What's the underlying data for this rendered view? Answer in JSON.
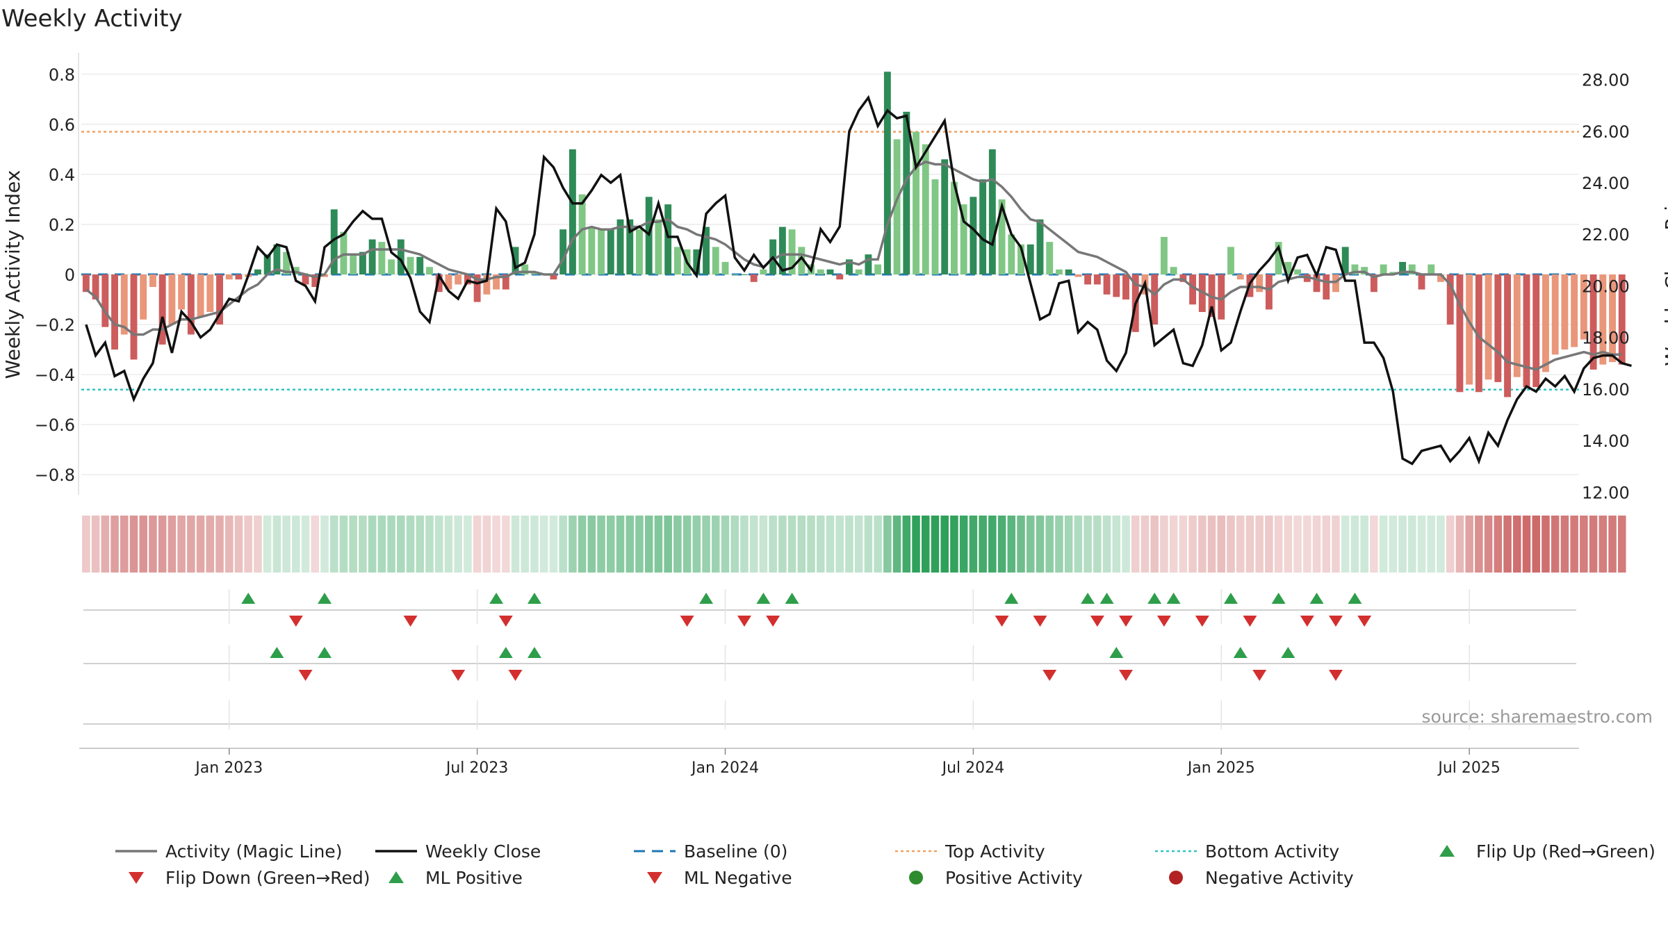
{
  "chart_data": {
    "type": "bar",
    "title": "Weekly Activity",
    "ylabel_left": "Weekly Activity Index",
    "ylabel_right": "Weekly Close Price",
    "source": "source: sharemaestro.com",
    "y_left_range": [
      -0.88,
      0.83
    ],
    "y_right_range": [
      11.9,
      28.5
    ],
    "y_left_ticks": [
      0.8,
      0.6,
      0.4,
      0.2,
      0,
      -0.2,
      -0.4,
      -0.6,
      -0.8
    ],
    "y_left_tick_labels": [
      "0.8",
      "0.6",
      "0.4",
      "0.2",
      "0",
      "−0.2",
      "−0.4",
      "−0.6",
      "−0.8"
    ],
    "y_right_ticks": [
      28,
      26,
      24,
      22,
      20,
      18,
      16,
      14,
      12
    ],
    "y_right_tick_labels": [
      "28.00",
      "26.00",
      "24.00",
      "22.00",
      "20.00",
      "18.00",
      "16.00",
      "14.00",
      "12.00"
    ],
    "top_activity_level": 0.57,
    "bottom_activity_level": -0.46,
    "x_ticks": [
      {
        "label": "Jan 2023",
        "week": 15
      },
      {
        "label": "Jul 2023",
        "week": 41
      },
      {
        "label": "Jan 2024",
        "week": 67
      },
      {
        "label": "Jul 2024",
        "week": 93
      },
      {
        "label": "Jan 2025",
        "week": 119
      },
      {
        "label": "Jul 2025",
        "week": 145
      }
    ],
    "weeks": 157,
    "activity": [
      -0.07,
      -0.1,
      -0.21,
      -0.3,
      -0.24,
      -0.34,
      -0.18,
      -0.05,
      -0.28,
      -0.2,
      -0.14,
      -0.24,
      -0.17,
      -0.15,
      -0.2,
      -0.02,
      -0.02,
      -0.01,
      0.02,
      0.08,
      0.12,
      0.09,
      0.03,
      -0.04,
      -0.05,
      -0.01,
      0.26,
      0.17,
      0.08,
      0.09,
      0.14,
      0.13,
      0.06,
      0.14,
      0.07,
      0.07,
      0.03,
      -0.07,
      -0.06,
      -0.04,
      -0.04,
      -0.11,
      -0.08,
      -0.06,
      -0.06,
      0.11,
      0.04,
      0.01,
      0.0,
      -0.02,
      0.18,
      0.5,
      0.32,
      0.19,
      0.18,
      0.18,
      0.22,
      0.22,
      0.18,
      0.31,
      0.22,
      0.28,
      0.11,
      0.1,
      0.1,
      0.19,
      0.11,
      0.05,
      0.0,
      0.0,
      -0.03,
      0.02,
      0.14,
      0.19,
      0.18,
      0.11,
      0.04,
      0.02,
      0.02,
      -0.02,
      0.06,
      0.02,
      0.08,
      0.04,
      0.81,
      0.54,
      0.65,
      0.57,
      0.52,
      0.38,
      0.46,
      0.37,
      0.28,
      0.31,
      0.38,
      0.5,
      0.3,
      0.16,
      0.12,
      0.12,
      0.22,
      0.13,
      0.02,
      0.02,
      -0.01,
      -0.04,
      -0.04,
      -0.08,
      -0.09,
      -0.1,
      -0.23,
      -0.08,
      -0.2,
      0.15,
      0.03,
      -0.03,
      -0.12,
      -0.15,
      -0.17,
      -0.18,
      0.11,
      -0.02,
      -0.09,
      -0.07,
      -0.14,
      0.13,
      0.05,
      0.02,
      -0.03,
      -0.07,
      -0.1,
      -0.07,
      0.11,
      0.04,
      0.03,
      -0.07,
      0.04,
      0.01,
      0.05,
      0.04,
      -0.06,
      0.04,
      -0.03,
      -0.2,
      -0.47,
      -0.44,
      -0.47,
      -0.42,
      -0.43,
      -0.49,
      -0.41,
      -0.45,
      -0.45,
      -0.39,
      -0.32,
      -0.3,
      -0.29,
      -0.26,
      -0.38,
      -0.36,
      -0.35,
      -0.36
    ],
    "magic_line": [
      -0.06,
      -0.09,
      -0.15,
      -0.2,
      -0.21,
      -0.24,
      -0.24,
      -0.22,
      -0.22,
      -0.2,
      -0.18,
      -0.18,
      -0.17,
      -0.16,
      -0.15,
      -0.12,
      -0.09,
      -0.06,
      -0.04,
      0.0,
      0.02,
      0.01,
      0.01,
      0.0,
      -0.01,
      0.0,
      0.06,
      0.08,
      0.08,
      0.08,
      0.1,
      0.1,
      0.1,
      0.1,
      0.09,
      0.08,
      0.06,
      0.04,
      0.02,
      0.01,
      0.0,
      -0.02,
      -0.02,
      -0.01,
      -0.01,
      0.01,
      0.01,
      0.01,
      0.0,
      0.0,
      0.06,
      0.14,
      0.18,
      0.19,
      0.18,
      0.18,
      0.19,
      0.19,
      0.19,
      0.21,
      0.21,
      0.22,
      0.19,
      0.18,
      0.16,
      0.15,
      0.14,
      0.12,
      0.09,
      0.06,
      0.04,
      0.03,
      0.06,
      0.08,
      0.08,
      0.08,
      0.07,
      0.06,
      0.05,
      0.04,
      0.05,
      0.04,
      0.06,
      0.06,
      0.2,
      0.3,
      0.38,
      0.43,
      0.45,
      0.44,
      0.44,
      0.42,
      0.4,
      0.38,
      0.37,
      0.38,
      0.35,
      0.31,
      0.26,
      0.22,
      0.21,
      0.18,
      0.15,
      0.12,
      0.09,
      0.08,
      0.07,
      0.05,
      0.03,
      0.01,
      -0.04,
      -0.05,
      -0.08,
      -0.04,
      -0.02,
      -0.02,
      -0.05,
      -0.07,
      -0.09,
      -0.1,
      -0.07,
      -0.05,
      -0.05,
      -0.05,
      -0.06,
      -0.03,
      -0.02,
      -0.01,
      -0.01,
      -0.02,
      -0.03,
      -0.03,
      0.0,
      0.01,
      0.01,
      -0.01,
      0.0,
      0.0,
      0.01,
      0.01,
      0.0,
      0.0,
      0.0,
      -0.04,
      -0.12,
      -0.19,
      -0.25,
      -0.28,
      -0.31,
      -0.35,
      -0.36,
      -0.37,
      -0.38,
      -0.36,
      -0.34,
      -0.33,
      -0.32,
      -0.31,
      -0.32,
      -0.31,
      -0.32,
      -0.32
    ],
    "weekly_close": [
      18.5,
      17.3,
      17.8,
      16.5,
      16.7,
      15.6,
      16.4,
      17.0,
      18.8,
      17.4,
      19.0,
      18.6,
      18.0,
      18.3,
      18.9,
      19.5,
      19.4,
      20.4,
      21.5,
      21.1,
      21.6,
      21.5,
      20.2,
      20.0,
      19.4,
      21.5,
      21.8,
      22.0,
      22.5,
      22.9,
      22.6,
      22.6,
      21.3,
      21.0,
      20.3,
      19.0,
      18.6,
      20.4,
      19.8,
      19.5,
      20.2,
      20.1,
      20.2,
      23.0,
      22.5,
      20.7,
      20.9,
      22.0,
      25.0,
      24.6,
      23.8,
      23.2,
      23.2,
      23.7,
      24.3,
      24.0,
      24.3,
      22.1,
      22.3,
      22.0,
      23.2,
      21.9,
      21.9,
      20.9,
      20.4,
      22.8,
      23.2,
      23.5,
      21.1,
      20.6,
      21.2,
      20.7,
      21.1,
      20.6,
      20.7,
      21.1,
      20.6,
      22.2,
      21.7,
      22.3,
      26.0,
      26.8,
      27.3,
      26.2,
      26.8,
      26.5,
      26.6,
      24.6,
      25.2,
      25.8,
      26.4,
      24.0,
      22.5,
      22.2,
      21.8,
      21.6,
      23.1,
      22.0,
      21.5,
      20.1,
      18.7,
      18.9,
      20.1,
      20.2,
      18.2,
      18.6,
      18.3,
      17.1,
      16.7,
      17.4,
      19.3,
      20.1,
      17.7,
      18.0,
      18.3,
      17.0,
      16.9,
      17.7,
      19.2,
      17.5,
      17.8,
      19.0,
      20.1,
      20.6,
      21.0,
      21.5,
      20.2,
      21.1,
      21.2,
      20.4,
      21.5,
      21.4,
      20.2,
      20.2,
      17.8,
      17.8,
      17.2,
      15.9,
      13.3,
      13.1,
      13.6,
      13.7,
      13.8,
      13.2,
      13.6,
      14.1,
      13.2,
      14.3,
      13.8,
      14.8,
      15.6,
      16.1,
      15.9,
      16.4,
      16.1,
      16.5,
      15.9,
      16.8,
      17.2,
      17.3,
      17.3,
      17.0,
      16.9
    ]
  },
  "strip_row1_up": [
    "▲",
    "▲",
    "▲",
    "▲",
    "▲",
    "▲",
    "▲",
    "▲",
    "▲",
    "▲",
    "▲",
    "▲",
    "▲",
    "▲",
    "▲",
    "▲"
  ],
  "legend": [
    {
      "label": "Activity (Magic Line)",
      "symbol": "line",
      "color": "#777777"
    },
    {
      "label": "Weekly Close",
      "symbol": "line",
      "color": "#111111"
    },
    {
      "label": "Baseline (0)",
      "symbol": "dash",
      "color": "#1f77b4"
    },
    {
      "label": "Top Activity",
      "symbol": "dot",
      "color": "#f0a060"
    },
    {
      "label": "Bottom Activity",
      "symbol": "dot",
      "color": "#2ec4c4"
    },
    {
      "label": "Flip Up (Red→Green)",
      "symbol": "up",
      "color": "#2e9e4a"
    },
    {
      "label": "Flip Down (Green→Red)",
      "symbol": "down",
      "color": "#d32f2f"
    },
    {
      "label": "ML Positive",
      "symbol": "up",
      "color": "#2e9e4a"
    },
    {
      "label": "ML Negative",
      "symbol": "down",
      "color": "#d32f2f"
    },
    {
      "label": "Positive Activity",
      "symbol": "circle",
      "color": "#2e8b2e"
    },
    {
      "label": "Negative Activity",
      "symbol": "circle",
      "color": "#b22222"
    }
  ],
  "colors": {
    "positive_dark": "#2e8b57",
    "positive_light": "#80c785",
    "negative_dark": "#cd5c5c",
    "negative_light": "#e9967a"
  }
}
